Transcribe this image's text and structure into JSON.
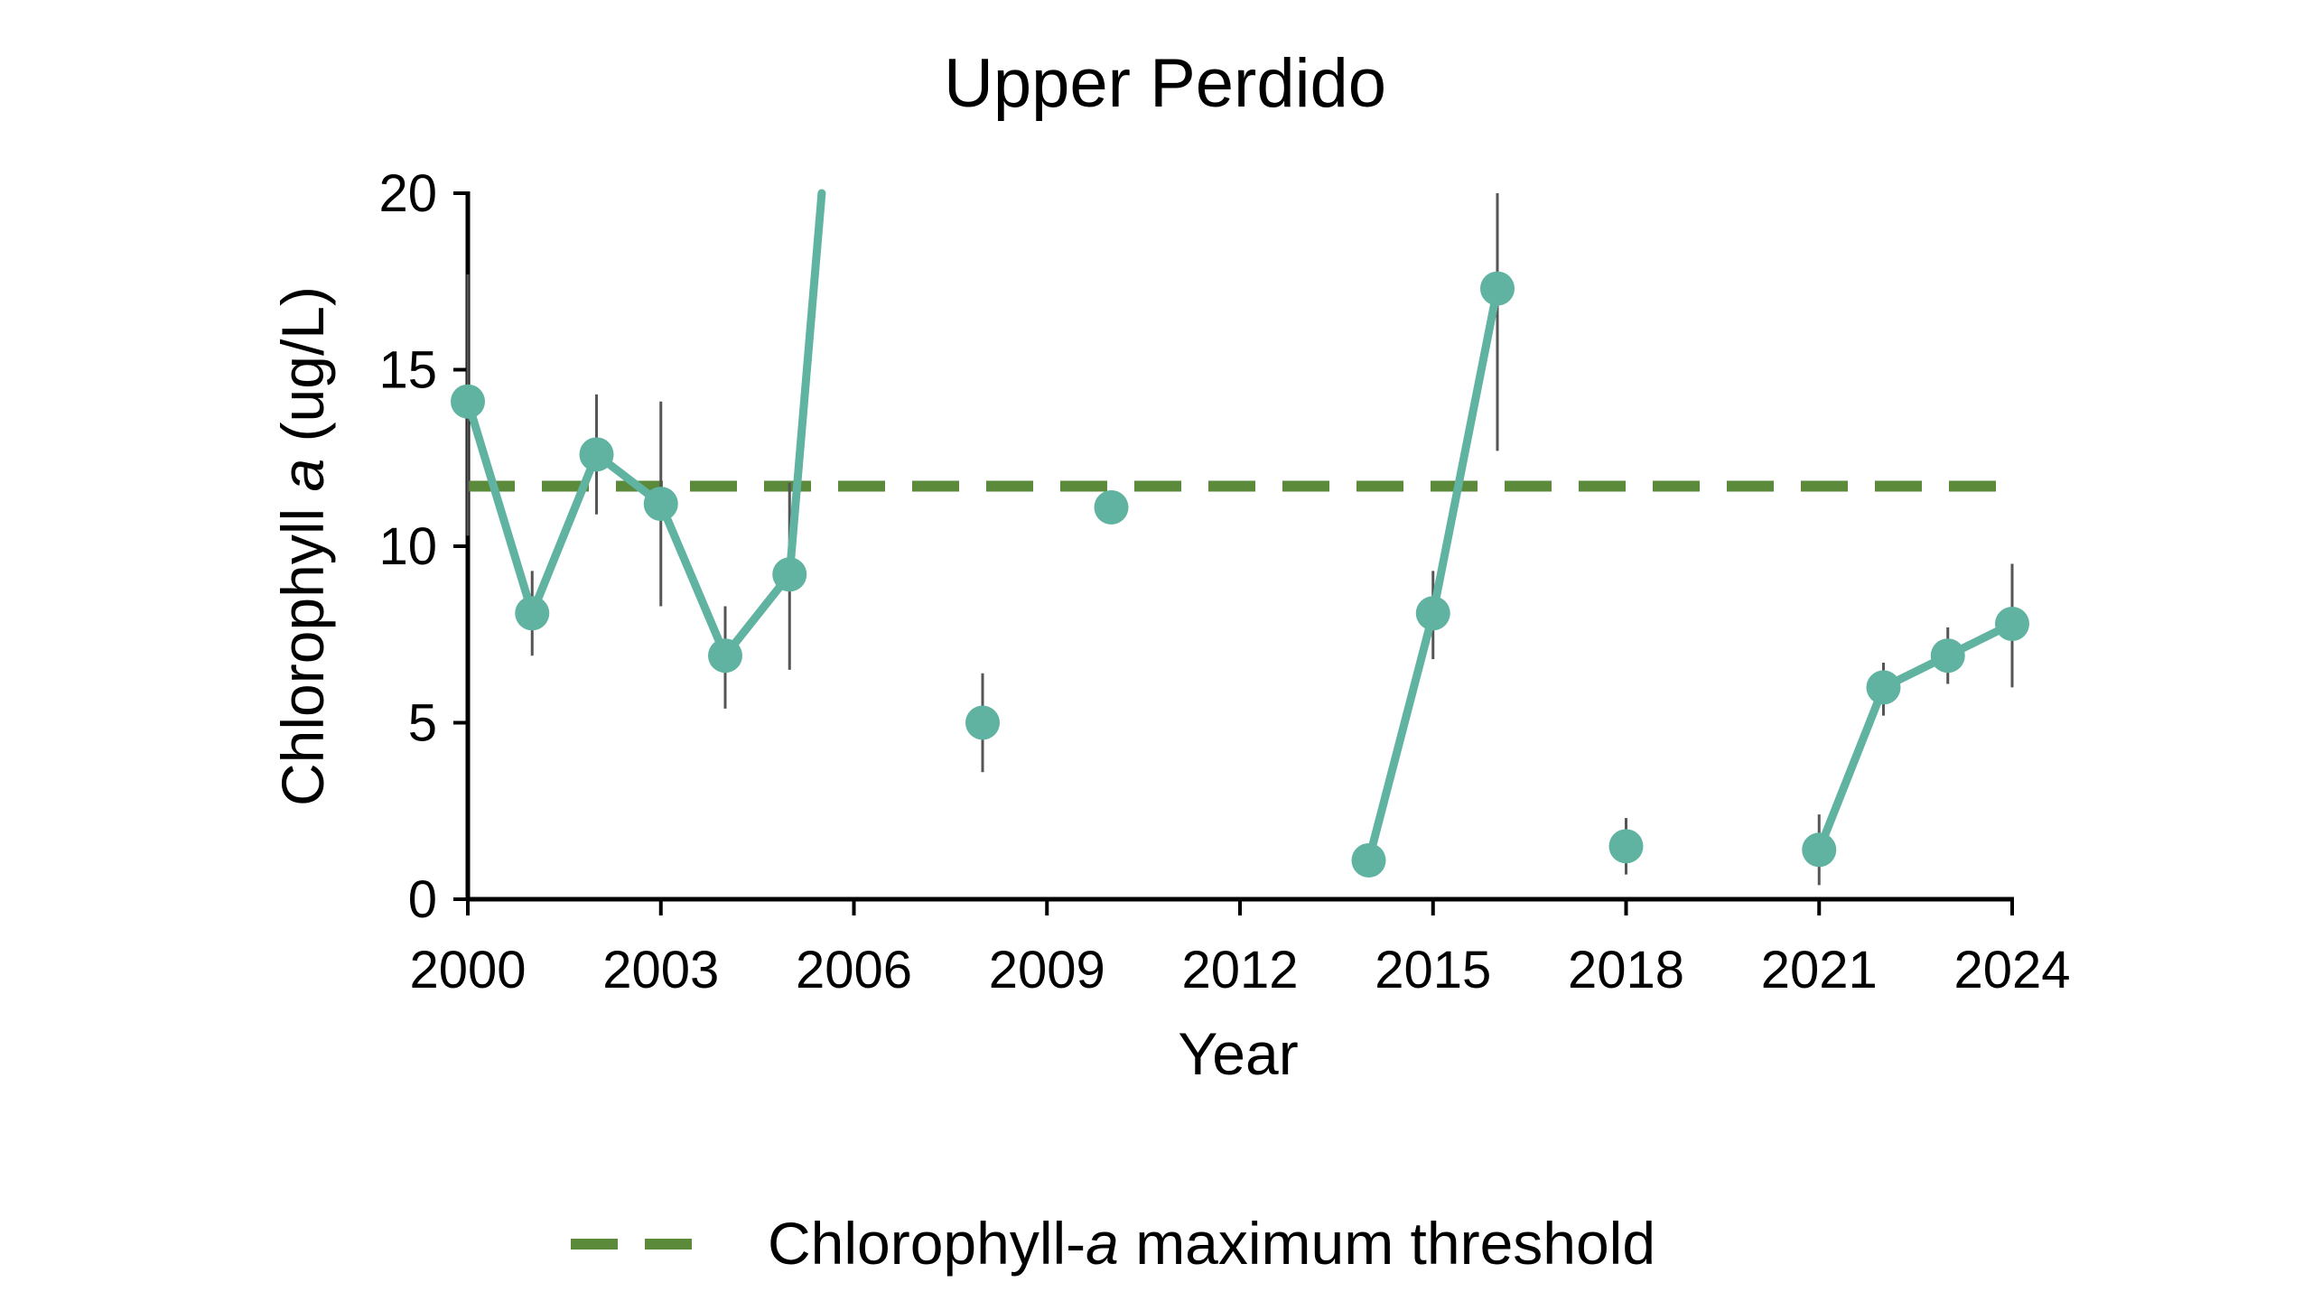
{
  "chart_data": {
    "type": "line",
    "title": "Upper Perdido",
    "xlabel": "Year",
    "ylabel_prefix": "Chlorophyll ",
    "ylabel_italic": "a",
    "ylabel_suffix": " (ug/L)",
    "xlim": [
      2000,
      2024
    ],
    "ylim": [
      0,
      20
    ],
    "x_ticks": [
      2000,
      2003,
      2006,
      2009,
      2012,
      2015,
      2018,
      2021,
      2024
    ],
    "y_ticks": [
      0,
      5,
      10,
      15,
      20
    ],
    "grid": false,
    "series": [
      {
        "color": "#5fb3a0",
        "points": [
          {
            "x": 2000,
            "y": 14.1,
            "err_low": 10.3,
            "err_high": 17.7
          },
          {
            "x": 2001,
            "y": 8.1,
            "err_low": 6.9,
            "err_high": 9.3
          },
          {
            "x": 2002,
            "y": 12.6,
            "err_low": 10.9,
            "err_high": 14.3
          },
          {
            "x": 2003,
            "y": 11.2,
            "err_low": 8.3,
            "err_high": 14.1
          },
          {
            "x": 2004,
            "y": 6.9,
            "err_low": 5.4,
            "err_high": 8.3
          },
          {
            "x": 2005,
            "y": 9.2,
            "err_low": 6.5,
            "err_high": 11.8
          },
          {
            "x": 2008,
            "y": 5.0,
            "err_low": 3.6,
            "err_high": 6.4
          },
          {
            "x": 2010,
            "y": 11.1,
            "err_low": null,
            "err_high": null
          },
          {
            "x": 2014,
            "y": 1.1,
            "err_low": null,
            "err_high": null
          },
          {
            "x": 2015,
            "y": 8.1,
            "err_low": 6.8,
            "err_high": 9.3
          },
          {
            "x": 2016,
            "y": 17.3,
            "err_low": 12.7,
            "err_high": 20.0
          },
          {
            "x": 2018,
            "y": 1.5,
            "err_low": 0.7,
            "err_high": 2.3
          },
          {
            "x": 2021,
            "y": 1.4,
            "err_low": 0.4,
            "err_high": 2.4
          },
          {
            "x": 2022,
            "y": 6.0,
            "err_low": 5.2,
            "err_high": 6.7
          },
          {
            "x": 2023,
            "y": 6.9,
            "err_low": 6.1,
            "err_high": 7.7
          },
          {
            "x": 2024,
            "y": 7.8,
            "err_low": 6.0,
            "err_high": 9.5
          }
        ],
        "line_segments": [
          [
            [
              2000,
              14.1
            ],
            [
              2001,
              8.1
            ],
            [
              2002,
              12.6
            ],
            [
              2003,
              11.2
            ],
            [
              2004,
              6.9
            ],
            [
              2005,
              9.2
            ],
            [
              2005.5,
              20
            ]
          ],
          [
            [
              2014,
              1.1
            ],
            [
              2015,
              8.1
            ],
            [
              2016,
              17.3
            ]
          ],
          [
            [
              2021,
              1.4
            ],
            [
              2022,
              6.0
            ],
            [
              2023,
              6.9
            ],
            [
              2024,
              7.8
            ]
          ]
        ]
      }
    ],
    "threshold": {
      "name_prefix": "Chlorophyll-",
      "name_italic": "a",
      "name_suffix": " maximum threshold",
      "value": 11.7,
      "color": "#5a8a3a"
    },
    "legend_position": "bottom-center"
  }
}
